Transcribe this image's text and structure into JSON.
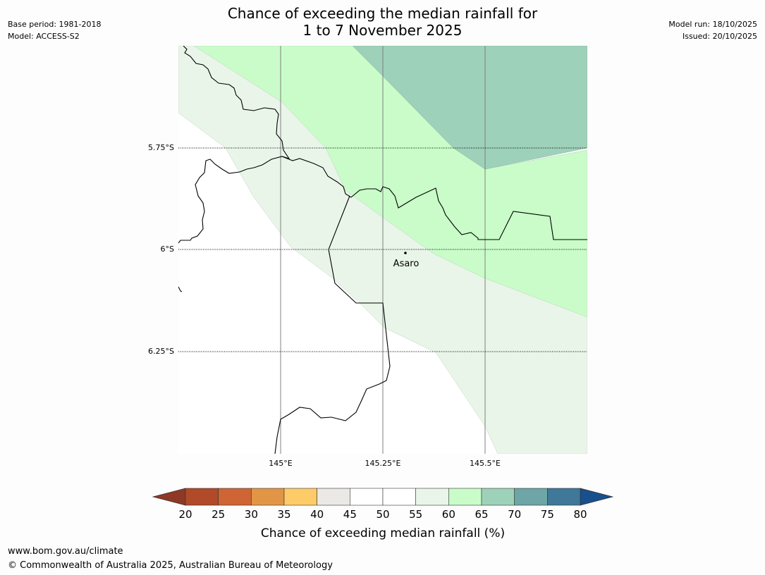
{
  "title": {
    "line1": "Chance of exceeding the median rainfall for",
    "line2": "1 to 7 November 2025"
  },
  "meta_left": {
    "base_period": "Base period: 1981-2018",
    "model": "Model: ACCESS-S2"
  },
  "meta_right": {
    "model_run": "Model run: 18/10/2025",
    "issued": "Issued: 20/10/2025"
  },
  "map": {
    "lat_labels": [
      "5.75°S",
      "6°S",
      "6.25°S"
    ],
    "lon_labels": [
      "145°E",
      "145.25°E",
      "145.5°E"
    ],
    "place": {
      "name": "Asaro"
    },
    "zone_colors": {
      "55_60": "#e9f5e9",
      "60_65": "#c9fcc9",
      "65_70": "#9ed1b9"
    }
  },
  "colorbar": {
    "title": "Chance of exceeding median rainfall (%)",
    "ticks": [
      "20",
      "25",
      "30",
      "35",
      "40",
      "45",
      "50",
      "55",
      "60",
      "65",
      "70",
      "75",
      "80"
    ],
    "low_extend_color": "#8e3925",
    "high_extend_color": "#17508c",
    "colors": [
      "#b04a28",
      "#cf6434",
      "#e39546",
      "#fecb69",
      "#eae9e5",
      "#ffffff",
      "#ffffff",
      "#e9f5e9",
      "#c9fcc9",
      "#9ed1b9",
      "#6ea5a6",
      "#3f7898"
    ]
  },
  "footer": {
    "url": "www.bom.gov.au/climate",
    "copyright": "© Commonwealth of Australia 2025, Australian Bureau of Meteorology"
  }
}
